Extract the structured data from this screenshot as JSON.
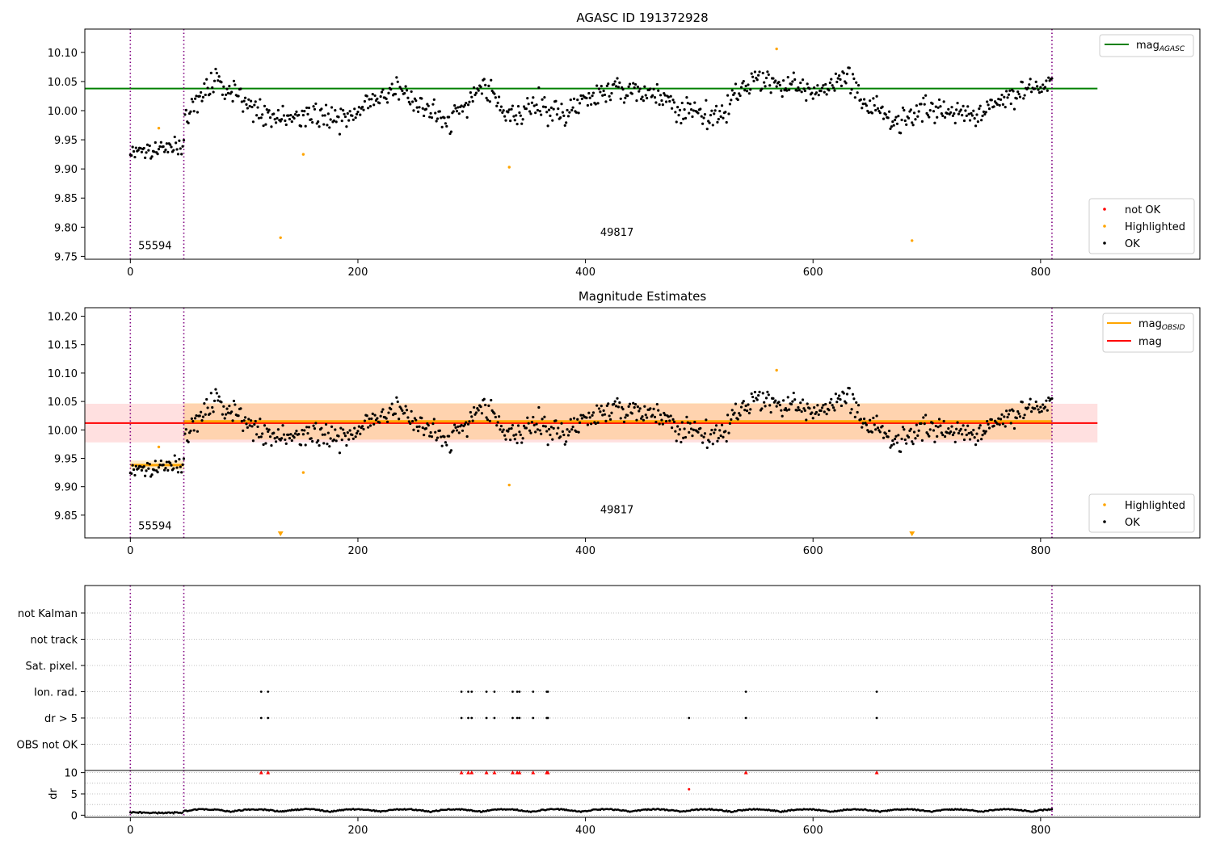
{
  "chart_data": [
    {
      "type": "scatter",
      "title": "AGASC ID 191372928",
      "xlim": [
        -40,
        940
      ],
      "ylim": [
        9.745,
        10.14
      ],
      "x_ticks": [
        0,
        200,
        400,
        600,
        800
      ],
      "y_ticks": [
        9.75,
        9.8,
        9.85,
        9.9,
        9.95,
        10.0,
        10.05,
        10.1
      ],
      "x_tick_labels": [
        "0",
        "200",
        "400",
        "600",
        "800"
      ],
      "y_tick_labels": [
        "9.75",
        "9.80",
        "9.85",
        "9.90",
        "9.95",
        "10.00",
        "10.05",
        "10.10"
      ],
      "obsid_boundaries": [
        0,
        47,
        810
      ],
      "obsid_labels": [
        {
          "text": "55594",
          "x": 7,
          "y": 9.762
        },
        {
          "text": "49817",
          "x": 413,
          "y": 9.785
        }
      ],
      "mag_agasc": {
        "value": 10.038,
        "x_range": [
          -40,
          850
        ]
      },
      "highlighted_points": [
        {
          "x": 25,
          "y": 9.97
        },
        {
          "x": 132,
          "y": 9.782
        },
        {
          "x": 152,
          "y": 9.925
        },
        {
          "x": 333,
          "y": 9.903
        },
        {
          "x": 568,
          "y": 10.106
        },
        {
          "x": 687,
          "y": 9.777
        }
      ],
      "ok_trend": [
        {
          "x": 0,
          "y": 9.935
        },
        {
          "x": 46,
          "y": 9.935
        },
        {
          "x": 48,
          "y": 9.985
        },
        {
          "x": 60,
          "y": 10.02
        },
        {
          "x": 75,
          "y": 10.05
        },
        {
          "x": 95,
          "y": 10.03
        },
        {
          "x": 125,
          "y": 9.985
        },
        {
          "x": 160,
          "y": 9.99
        },
        {
          "x": 190,
          "y": 9.985
        },
        {
          "x": 215,
          "y": 10.02
        },
        {
          "x": 235,
          "y": 10.045
        },
        {
          "x": 260,
          "y": 10.0
        },
        {
          "x": 280,
          "y": 9.985
        },
        {
          "x": 310,
          "y": 10.04
        },
        {
          "x": 340,
          "y": 9.99
        },
        {
          "x": 360,
          "y": 10.01
        },
        {
          "x": 380,
          "y": 9.99
        },
        {
          "x": 400,
          "y": 10.02
        },
        {
          "x": 430,
          "y": 10.04
        },
        {
          "x": 460,
          "y": 10.025
        },
        {
          "x": 485,
          "y": 10.0
        },
        {
          "x": 510,
          "y": 9.985
        },
        {
          "x": 530,
          "y": 10.02
        },
        {
          "x": 550,
          "y": 10.06
        },
        {
          "x": 575,
          "y": 10.04
        },
        {
          "x": 600,
          "y": 10.035
        },
        {
          "x": 630,
          "y": 10.06
        },
        {
          "x": 645,
          "y": 10.01
        },
        {
          "x": 670,
          "y": 9.985
        },
        {
          "x": 690,
          "y": 9.99
        },
        {
          "x": 720,
          "y": 10.0
        },
        {
          "x": 740,
          "y": 9.985
        },
        {
          "x": 760,
          "y": 10.02
        },
        {
          "x": 780,
          "y": 10.03
        },
        {
          "x": 810,
          "y": 10.05
        }
      ],
      "legend_lines": [
        {
          "label": "mag",
          "sub": "AGASC",
          "color": "#008000"
        }
      ],
      "legend_points": [
        {
          "label": "not OK",
          "color": "#ff0000"
        },
        {
          "label": "Highlighted",
          "color": "#ffa500"
        },
        {
          "label": "OK",
          "color": "#000000"
        }
      ]
    },
    {
      "type": "scatter",
      "title": "Magnitude Estimates",
      "xlim": [
        -40,
        940
      ],
      "ylim": [
        9.81,
        10.215
      ],
      "x_ticks": [
        0,
        200,
        400,
        600,
        800
      ],
      "y_ticks": [
        9.85,
        9.9,
        9.95,
        10.0,
        10.05,
        10.1,
        10.15,
        10.2
      ],
      "x_tick_labels": [
        "0",
        "200",
        "400",
        "600",
        "800"
      ],
      "y_tick_labels": [
        "9.85",
        "9.90",
        "9.95",
        "10.00",
        "10.05",
        "10.10",
        "10.15",
        "10.20"
      ],
      "obsid_boundaries": [
        0,
        47,
        810
      ],
      "obsid_labels": [
        {
          "text": "55594",
          "x": 7,
          "y": 9.825
        },
        {
          "text": "49817",
          "x": 413,
          "y": 9.853
        }
      ],
      "mag": {
        "value": 10.012,
        "band": [
          9.978,
          10.046
        ],
        "x_range": [
          -40,
          850
        ]
      },
      "mag_obsid": [
        {
          "x_range": [
            0,
            47
          ],
          "value": 9.938,
          "band": [
            9.93,
            9.946
          ]
        },
        {
          "x_range": [
            47,
            810
          ],
          "value": 10.015,
          "band": [
            9.983,
            10.047
          ]
        }
      ],
      "highlighted_points": [
        {
          "x": 25,
          "y": 9.97
        },
        {
          "x": 152,
          "y": 9.925
        },
        {
          "x": 333,
          "y": 9.903
        },
        {
          "x": 568,
          "y": 10.105
        }
      ],
      "offscale_markers": [
        {
          "x": 132
        },
        {
          "x": 687
        }
      ],
      "legend_lines": [
        {
          "label": "mag",
          "sub": "OBSID",
          "color": "#ffa500"
        },
        {
          "label": "mag",
          "sub": "",
          "color": "#ff0000"
        }
      ],
      "legend_points": [
        {
          "label": "Highlighted",
          "color": "#ffa500"
        },
        {
          "label": "OK",
          "color": "#000000"
        }
      ]
    },
    {
      "type": "scatter",
      "xlim": [
        -40,
        940
      ],
      "obsid_boundaries": [
        0,
        47,
        810
      ],
      "flag_categories": [
        "not Kalman",
        "not track",
        "Sat. pixel.",
        "Ion. rad.",
        "dr > 5",
        "OBS not OK"
      ],
      "flag_points": [
        {
          "category": "Ion. rad.",
          "x": [
            115,
            121,
            291,
            297,
            300,
            313,
            320,
            336,
            340,
            342,
            354,
            366,
            367,
            541,
            656
          ]
        },
        {
          "category": "dr > 5",
          "x": [
            115,
            121,
            291,
            297,
            300,
            313,
            320,
            336,
            340,
            342,
            354,
            366,
            367,
            491,
            541,
            656
          ]
        }
      ]
    },
    {
      "type": "scatter",
      "ylabel": "dr",
      "xlim": [
        -40,
        940
      ],
      "ylim": [
        -0.5,
        10.5
      ],
      "x_ticks": [
        0,
        200,
        400,
        600,
        800
      ],
      "y_ticks": [
        0,
        5,
        10
      ],
      "x_tick_labels": [
        "0",
        "200",
        "400",
        "600",
        "800"
      ],
      "y_tick_labels": [
        "0",
        "5",
        "10"
      ],
      "obsid_boundaries": [
        0,
        47,
        810
      ],
      "clipped_points": [
        115,
        121,
        291,
        297,
        300,
        313,
        320,
        336,
        340,
        342,
        354,
        366,
        367,
        541,
        656
      ],
      "outlier_points": [
        {
          "x": 491,
          "y": 6.1
        }
      ]
    }
  ]
}
